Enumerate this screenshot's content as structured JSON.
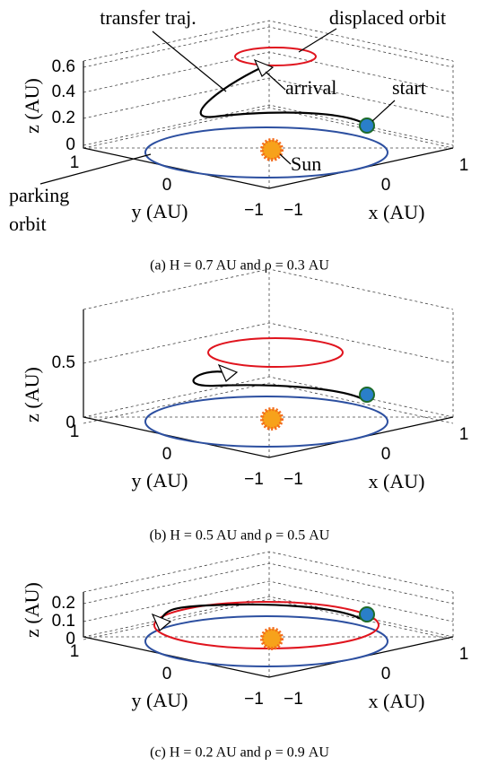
{
  "panels": [
    {
      "z_label": "z (AU)",
      "z_ticks": [
        "0.6",
        "0.4",
        "0.2",
        "0"
      ],
      "y_label": "y (AU)",
      "x_label": "x (AU)",
      "y_ticks": [
        "1",
        "0",
        "−1"
      ],
      "x_ticks": [
        "−1",
        "0",
        "1"
      ],
      "annotations": {
        "transfer": "transfer traj.",
        "displaced": "displaced orbit",
        "arrival": "arrival",
        "start": "start",
        "sun": "Sun",
        "parking": "parking",
        "orbit": "orbit"
      },
      "caption": "(a)  H = 0.7 AU  and  ρ = 0.3 AU"
    },
    {
      "z_label": "z (AU)",
      "z_ticks": [
        "0.5",
        "0"
      ],
      "y_label": "y (AU)",
      "x_label": "x (AU)",
      "y_ticks": [
        "1",
        "0",
        "−1"
      ],
      "x_ticks": [
        "−1",
        "0",
        "1"
      ],
      "caption": "(b)  H = 0.5 AU and ρ = 0.5 AU"
    },
    {
      "z_label": "z (AU)",
      "z_ticks": [
        "0.2",
        "0.1",
        "0"
      ],
      "y_label": "y (AU)",
      "x_label": "x (AU)",
      "y_ticks": [
        "1",
        "0",
        "−1"
      ],
      "x_ticks": [
        "−1",
        "0",
        "1"
      ],
      "caption": "(c)  H = 0.2 AU and ρ = 0.9 AU"
    }
  ]
}
